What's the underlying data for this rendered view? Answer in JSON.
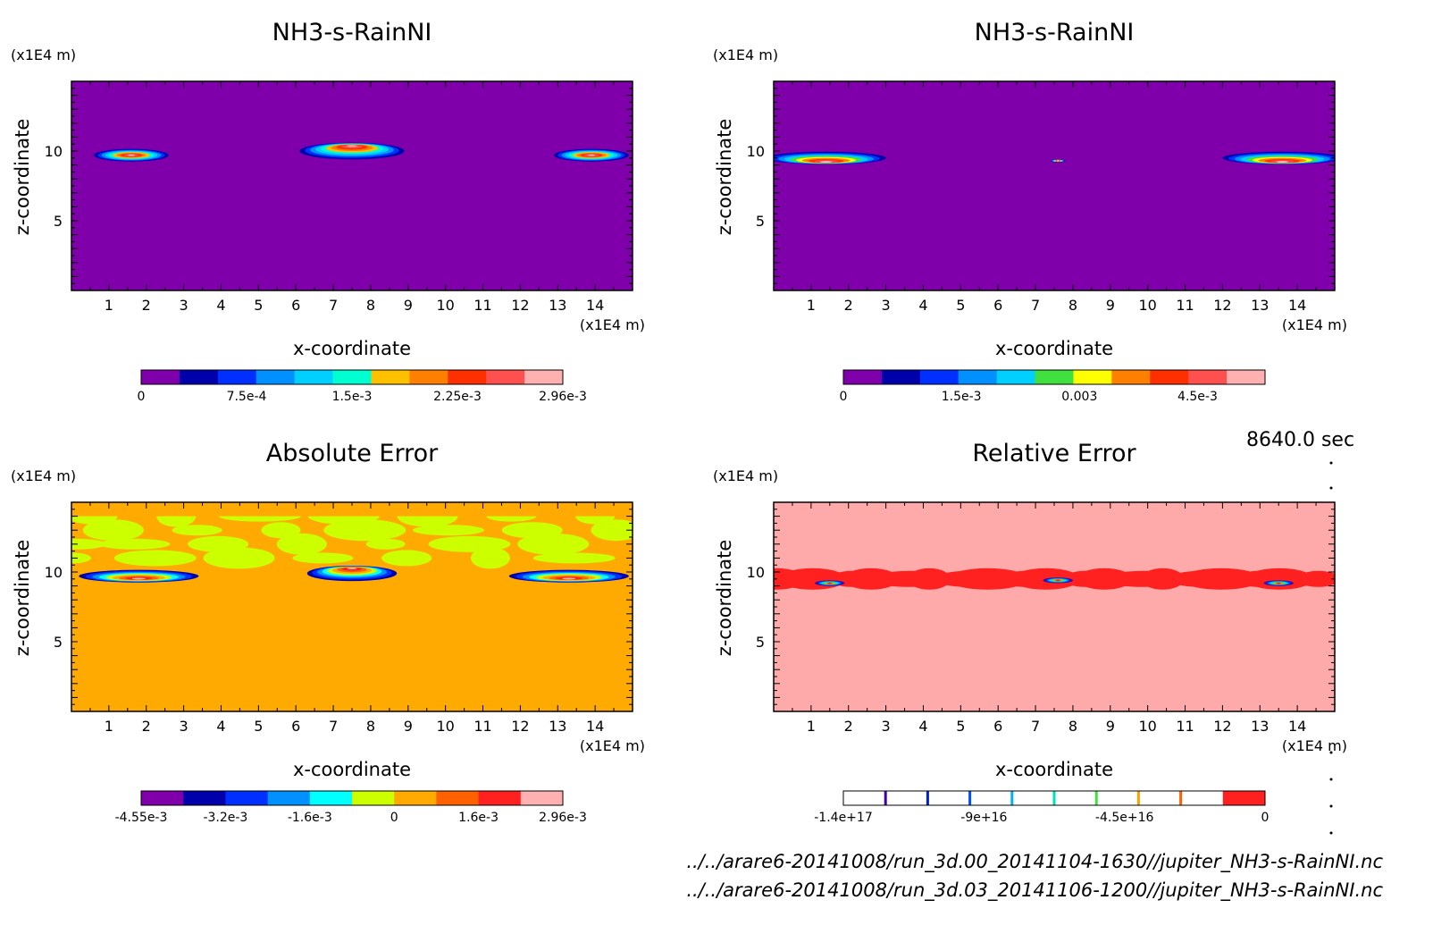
{
  "time_label": "8640.0 sec",
  "footer": {
    "file1": "../../arare6-20141008/run_3d.00_20141104-1630//jupiter_NH3-s-RainNI.nc",
    "file2": "../../arare6-20141008/run_3d.03_20141106-1200//jupiter_NH3-s-RainNI.nc"
  },
  "chart_data": [
    {
      "type": "heatmap",
      "title": "NH3-s-RainNI",
      "xlabel": "x-coordinate",
      "ylabel": "z-coordinate",
      "unit_label": "(x1E4 m)",
      "xlim": [
        0,
        15
      ],
      "ylim": [
        0,
        15
      ],
      "xticks": [
        1,
        2,
        3,
        4,
        5,
        6,
        7,
        8,
        9,
        10,
        11,
        12,
        13,
        14
      ],
      "yticks": [
        5,
        10
      ],
      "background": "#7f00aa",
      "colors": [
        "#7f00aa",
        "#0000aa",
        "#0030ff",
        "#0090ff",
        "#00d0ff",
        "#00ffd0",
        "#ffc000",
        "#ff8000",
        "#ff3000",
        "#ff5050",
        "#ffb0b0"
      ],
      "colorbar_labels": [
        "0",
        "7.5e-4",
        "1.5e-3",
        "2.25e-3",
        "2.96e-3"
      ],
      "features": [
        {
          "cx": 1.6,
          "cz": 9.7,
          "rx": 1.0,
          "rz": 0.45,
          "arch": 0.0
        },
        {
          "cx": 7.5,
          "cz": 10.0,
          "rx": 1.4,
          "rz": 0.6,
          "arch": 0.4
        },
        {
          "cx": 13.9,
          "cz": 9.7,
          "rx": 1.0,
          "rz": 0.45,
          "arch": 0.0
        }
      ]
    },
    {
      "type": "heatmap",
      "title": "NH3-s-RainNI",
      "xlabel": "x-coordinate",
      "ylabel": "z-coordinate",
      "unit_label": "(x1E4 m)",
      "xlim": [
        0,
        15
      ],
      "ylim": [
        0,
        15
      ],
      "xticks": [
        1,
        2,
        3,
        4,
        5,
        6,
        7,
        8,
        9,
        10,
        11,
        12,
        13,
        14
      ],
      "yticks": [
        5,
        10
      ],
      "background": "#7f00aa",
      "colors": [
        "#7f00aa",
        "#0000aa",
        "#0030ff",
        "#0090ff",
        "#00d0ff",
        "#40e040",
        "#ffff00",
        "#ff8000",
        "#ff3000",
        "#ff5050",
        "#ffb0b0"
      ],
      "colorbar_labels": [
        "0",
        "1.5e-3",
        "0.003",
        "4.5e-3"
      ],
      "features": [
        {
          "cx": 1.4,
          "cz": 9.5,
          "rx": 1.6,
          "rz": 0.45,
          "arch": -0.3
        },
        {
          "cx": 7.6,
          "cz": 9.3,
          "rx": 0.2,
          "rz": 0.1,
          "arch": 0.0
        },
        {
          "cx": 13.6,
          "cz": 9.5,
          "rx": 1.6,
          "rz": 0.45,
          "arch": -0.3
        }
      ]
    },
    {
      "type": "heatmap",
      "title": "Absolute Error",
      "xlabel": "x-coordinate",
      "ylabel": "z-coordinate",
      "unit_label": "(x1E4 m)",
      "xlim": [
        0,
        15
      ],
      "ylim": [
        0,
        15
      ],
      "xticks": [
        1,
        2,
        3,
        4,
        5,
        6,
        7,
        8,
        9,
        10,
        11,
        12,
        13,
        14
      ],
      "yticks": [
        5,
        10
      ],
      "background": "#ffaa00",
      "colors": [
        "#7f00aa",
        "#0000aa",
        "#0030ff",
        "#0090ff",
        "#00ffff",
        "#ccff00",
        "#ffaa00",
        "#ff6000",
        "#ff2020",
        "#ffb0b0"
      ],
      "colorbar_labels": [
        "-4.55e-3",
        "-3.2e-3",
        "-1.6e-3",
        "0",
        "1.6e-3",
        "2.96e-3"
      ],
      "features": [
        {
          "cx": 1.8,
          "cz": 9.7,
          "rx": 1.6,
          "rz": 0.45,
          "arch": -0.2
        },
        {
          "cx": 7.5,
          "cz": 9.9,
          "rx": 1.2,
          "rz": 0.55,
          "arch": 0.4
        },
        {
          "cx": 13.3,
          "cz": 9.7,
          "rx": 1.6,
          "rz": 0.45,
          "arch": -0.2
        }
      ]
    },
    {
      "type": "heatmap",
      "title": "Relative Error",
      "xlabel": "x-coordinate",
      "ylabel": "z-coordinate",
      "unit_label": "(x1E4 m)",
      "xlim": [
        0,
        15
      ],
      "ylim": [
        0,
        15
      ],
      "xticks": [
        1,
        2,
        3,
        4,
        5,
        6,
        7,
        8,
        9,
        10,
        11,
        12,
        13,
        14
      ],
      "yticks": [
        5,
        10
      ],
      "background": "#ffaaaa",
      "colors": [
        "#ffffff",
        "#4000aa",
        "#0020d0",
        "#0050ff",
        "#00b0ff",
        "#00e0c0",
        "#40e040",
        "#ffa000",
        "#ff6000",
        "#ff2020"
      ],
      "colorbar_labels": [
        "-1.4e+17",
        "-9e+16",
        "-4.5e+16",
        "0"
      ],
      "features": [
        {
          "cx": 1.5,
          "cz": 9.2,
          "rx": 0.4,
          "rz": 0.2,
          "arch": 0.0
        },
        {
          "cx": 7.6,
          "cz": 9.4,
          "rx": 0.4,
          "rz": 0.2,
          "arch": 0.0
        },
        {
          "cx": 13.5,
          "cz": 9.2,
          "rx": 0.4,
          "rz": 0.2,
          "arch": 0.0
        }
      ]
    }
  ]
}
